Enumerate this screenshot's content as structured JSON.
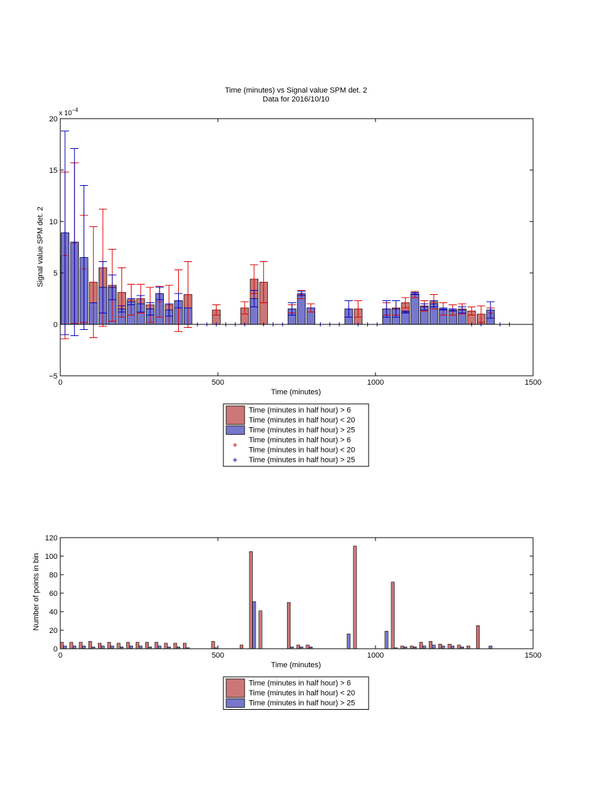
{
  "chart_data": [
    {
      "type": "bar",
      "title": "Time (minutes) vs Signal value SPM det. 2",
      "subtitle": "Data for 2016/10/10",
      "xlabel": "Time (minutes)",
      "ylabel": "Signal value SPM det. 2",
      "y_exponent": "x 10",
      "y_exponent_power": "−4",
      "xlim": [
        0,
        1500
      ],
      "ylim": [
        -5,
        20
      ],
      "x_ticks": [
        0,
        500,
        1000,
        1500
      ],
      "y_ticks": [
        -5,
        0,
        5,
        10,
        15,
        20
      ],
      "grid": false,
      "legend_position": "below",
      "legend": [
        {
          "kind": "bar",
          "color": "#cc7777",
          "line1": "Time (minutes in half hour) > 6",
          "line2": "Time (minutes in half hour) < 20"
        },
        {
          "kind": "bar",
          "color": "#7777cc",
          "line1": "Time (minutes in half hour) > 25",
          "line2": ""
        },
        {
          "kind": "marker",
          "color": "#dd0000",
          "line1": "Time (minutes in half hour) > 6",
          "line2": "Time (minutes in half hour) < 20"
        },
        {
          "kind": "marker",
          "color": "#0000bb",
          "line1": "Time (minutes in half hour) > 25",
          "line2": ""
        }
      ],
      "series": [
        {
          "color": "#cc7777",
          "err_color": "#dd0000",
          "x": [
            15,
            45,
            75,
            105,
            135,
            165,
            195,
            225,
            255,
            285,
            315,
            345,
            375,
            405,
            495,
            585,
            615,
            645,
            735,
            765,
            795,
            945,
            1035,
            1065,
            1095,
            1125,
            1155,
            1185,
            1215,
            1245,
            1275,
            1305,
            1335,
            1365
          ],
          "values": [
            6.7,
            7.9,
            5.4,
            4.1,
            5.5,
            3.8,
            3.1,
            2.4,
            2.5,
            1.9,
            2.2,
            1.9,
            2.3,
            2.9,
            1.4,
            1.6,
            4.4,
            4.1,
            1.5,
            2.9,
            1.6,
            1.5,
            1.5,
            1.6,
            2.1,
            2.9,
            1.8,
            2.2,
            1.5,
            1.4,
            1.5,
            1.3,
            1.0,
            1.1
          ],
          "errors": [
            8.1,
            7.8,
            5.2,
            5.4,
            5.7,
            3.5,
            2.4,
            1.5,
            1.4,
            1.7,
            1.5,
            1.9,
            3.0,
            3.2,
            0.5,
            0.6,
            1.4,
            2.0,
            0.4,
            0.4,
            0.4,
            0.8,
            0.6,
            0.7,
            0.5,
            0.3,
            0.5,
            0.7,
            0.6,
            0.5,
            0.5,
            0.4,
            0.8,
            0.5
          ]
        },
        {
          "color": "#7777cc",
          "err_color": "#0000bb",
          "x": [
            15,
            45,
            75,
            105,
            135,
            165,
            195,
            225,
            255,
            285,
            315,
            345,
            375,
            405,
            435,
            465,
            495,
            525,
            555,
            585,
            615,
            645,
            675,
            705,
            735,
            765,
            795,
            825,
            855,
            885,
            915,
            945,
            975,
            1005,
            1035,
            1065,
            1095,
            1125,
            1155,
            1185,
            1215,
            1245,
            1275,
            1305,
            1335,
            1365,
            1395,
            1425
          ],
          "values": [
            8.9,
            8.0,
            6.5,
            2.1,
            3.6,
            3.6,
            1.5,
            2.2,
            2.0,
            1.5,
            3.0,
            1.4,
            2.3,
            1.6,
            0,
            0,
            0,
            0,
            0,
            0,
            2.5,
            0,
            0,
            0,
            1.5,
            3.0,
            1.6,
            0,
            0,
            0,
            1.5,
            0,
            0,
            0,
            1.5,
            1.5,
            1.2,
            3.0,
            1.7,
            2.0,
            1.5,
            1.4,
            1.4,
            0,
            0,
            1.4,
            0,
            0
          ],
          "errors": [
            9.9,
            9.1,
            7.0,
            0,
            2.5,
            1.2,
            0.3,
            0.3,
            0.8,
            0.6,
            0.6,
            0.6,
            0.7,
            0,
            0,
            0,
            0,
            0,
            0,
            0,
            0.8,
            0,
            0,
            0,
            0.6,
            0.2,
            0,
            0,
            0,
            0,
            0.8,
            0,
            0,
            0,
            0.8,
            0.8,
            0.1,
            0.1,
            0.3,
            0.3,
            0.1,
            0.1,
            0.3,
            0,
            0,
            0.8,
            0,
            0
          ]
        }
      ]
    },
    {
      "type": "bar",
      "title": "",
      "xlabel": "Time (minutes)",
      "ylabel": "Number of points in bin",
      "xlim": [
        0,
        1500
      ],
      "ylim": [
        0,
        120
      ],
      "x_ticks": [
        0,
        500,
        1000,
        1500
      ],
      "y_ticks": [
        0,
        20,
        40,
        60,
        80,
        100,
        120
      ],
      "grid": false,
      "legend_position": "below",
      "legend": [
        {
          "kind": "bar",
          "color": "#cc7777",
          "line1": "Time (minutes in half hour) > 6",
          "line2": "Time (minutes in half hour) < 20"
        },
        {
          "kind": "bar",
          "color": "#7777cc",
          "line1": "Time (minutes in half hour) > 25",
          "line2": ""
        }
      ],
      "series": [
        {
          "color": "#cc7777",
          "x": [
            0,
            30,
            60,
            90,
            120,
            150,
            180,
            210,
            240,
            270,
            300,
            330,
            360,
            390,
            480,
            570,
            600,
            630,
            720,
            750,
            780,
            930,
            1050,
            1080,
            1110,
            1140,
            1170,
            1200,
            1230,
            1260,
            1290,
            1320
          ],
          "values": [
            7,
            7,
            7,
            8,
            6,
            7,
            6,
            7,
            7,
            7,
            7,
            6,
            6,
            6,
            8,
            4,
            105,
            41,
            50,
            4,
            4,
            111,
            72,
            3,
            3,
            7,
            8,
            5,
            5,
            4,
            3,
            25
          ]
        },
        {
          "color": "#7777cc",
          "x": [
            10,
            40,
            70,
            100,
            130,
            160,
            190,
            220,
            250,
            280,
            310,
            340,
            370,
            400,
            490,
            610,
            730,
            760,
            790,
            910,
            1030,
            1060,
            1090,
            1120,
            1150,
            1180,
            1210,
            1240,
            1270,
            1360
          ],
          "values": [
            3,
            3,
            3,
            2,
            3,
            3,
            2,
            3,
            3,
            2,
            3,
            2,
            2,
            1,
            1,
            51,
            2,
            2,
            2,
            16,
            19,
            1,
            2,
            2,
            3,
            4,
            3,
            3,
            2,
            3
          ]
        }
      ]
    }
  ]
}
